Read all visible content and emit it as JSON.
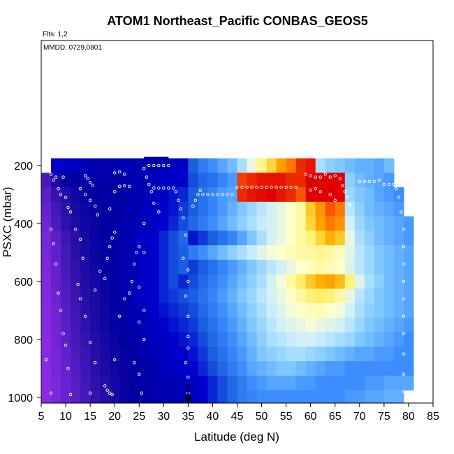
{
  "chart_data": {
    "type": "heatmap",
    "title": "ATOM1 Northeast_Pacific CONBAS_GEOS5",
    "flights_label": "Flts: 1,2",
    "dates_label": "MMDD: 0729,0801",
    "xlabel": "Latitude (deg N)",
    "ylabel": "PSXC (mbar)",
    "xlim": [
      5,
      85
    ],
    "ylim": [
      1000,
      0
    ],
    "y_reversed": true,
    "grid": false,
    "legend": "none",
    "x_ticks": [
      5,
      10,
      15,
      20,
      25,
      30,
      35,
      40,
      45,
      50,
      55,
      60,
      65,
      70,
      75,
      80,
      85
    ],
    "y_ticks": [
      200,
      400,
      600,
      800,
      1000
    ],
    "marker_latitude": 35,
    "color_scale": [
      "#8a2be2",
      "#5b1fc8",
      "#2a10a8",
      "#0000a0",
      "#0000cd",
      "#1a5fe0",
      "#3c8dff",
      "#7ec8ff",
      "#c8ecff",
      "#ffffcc",
      "#ffee66",
      "#ffb000",
      "#ff6a00",
      "#e00000"
    ],
    "latitude_bins": [
      6,
      8,
      10,
      12,
      14,
      16,
      18,
      20,
      22,
      24,
      26,
      28,
      30,
      32,
      34,
      36,
      38,
      40,
      42,
      44,
      46,
      48,
      50,
      52,
      54,
      56,
      58,
      60,
      62,
      64,
      66,
      68,
      70,
      72,
      74,
      76,
      78,
      80
    ],
    "pressure_bins": [
      200,
      250,
      300,
      350,
      400,
      450,
      500,
      550,
      600,
      650,
      700,
      750,
      800,
      850,
      900,
      950,
      1000
    ],
    "values": [
      [
        null,
        4.0,
        3.8,
        3.6,
        3.5,
        3.4,
        3.3,
        3.3,
        3.4,
        3.3,
        3.5,
        3.5,
        3.6,
        3.7,
        3.8,
        5.0,
        5.6,
        6.0,
        6.4,
        6.8,
        7.6,
        8.6,
        9.6,
        10.4,
        11.2,
        11.8,
        12.6,
        12.8,
        7.6,
        7.2,
        7.0,
        6.8,
        6.6,
        6.6,
        6.4,
        6.8,
        null,
        null
      ],
      [
        1.4,
        2.4,
        2.8,
        3.0,
        3.2,
        3.2,
        3.2,
        3.1,
        3.2,
        3.3,
        3.4,
        3.6,
        3.7,
        3.8,
        4.0,
        4.8,
        5.2,
        5.4,
        5.8,
        6.2,
        12.4,
        12.6,
        12.8,
        12.8,
        12.8,
        12.6,
        12.6,
        13.0,
        13.2,
        13.6,
        13.0,
        7.2,
        6.8,
        6.6,
        6.4,
        6.2,
        null,
        null
      ],
      [
        1.0,
        1.8,
        2.2,
        2.6,
        2.9,
        3.0,
        3.1,
        3.1,
        3.2,
        3.3,
        3.4,
        3.6,
        3.8,
        4.2,
        4.4,
        5.0,
        5.4,
        5.8,
        6.2,
        6.4,
        12.6,
        12.8,
        12.9,
        13.0,
        12.8,
        12.6,
        12.2,
        13.0,
        13.4,
        13.6,
        13.2,
        7.4,
        7.0,
        6.8,
        6.4,
        6.2,
        6.0,
        null
      ],
      [
        0.8,
        1.5,
        2.0,
        2.4,
        2.7,
        2.9,
        3.0,
        3.1,
        3.2,
        3.4,
        3.6,
        3.8,
        4.0,
        4.2,
        4.6,
        5.0,
        5.4,
        5.8,
        6.2,
        6.6,
        7.0,
        7.4,
        7.8,
        8.2,
        8.6,
        9.0,
        9.4,
        10.6,
        11.4,
        12.2,
        11.8,
        7.8,
        7.2,
        6.8,
        6.6,
        6.4,
        6.2,
        null
      ],
      [
        0.6,
        1.3,
        1.9,
        2.3,
        2.6,
        2.8,
        3.0,
        3.1,
        3.2,
        3.4,
        3.6,
        3.8,
        4.0,
        4.4,
        4.8,
        5.2,
        5.6,
        6.0,
        6.4,
        6.8,
        7.2,
        7.6,
        8.0,
        8.2,
        8.6,
        9.0,
        9.4,
        10.4,
        11.2,
        11.8,
        11.4,
        8.2,
        7.4,
        7.0,
        6.8,
        6.6,
        6.4,
        6.2
      ],
      [
        0.4,
        1.0,
        1.6,
        2.1,
        2.5,
        2.8,
        3.0,
        3.1,
        3.3,
        3.6,
        3.8,
        4.0,
        4.4,
        4.8,
        5.2,
        4.2,
        4.6,
        5.0,
        5.4,
        5.8,
        6.4,
        7.0,
        7.6,
        8.2,
        8.6,
        9.0,
        9.4,
        9.8,
        10.4,
        11.0,
        10.6,
        8.6,
        7.6,
        7.2,
        6.8,
        6.6,
        6.4,
        6.2
      ],
      [
        0.4,
        0.9,
        1.5,
        2.0,
        2.4,
        2.7,
        2.9,
        3.1,
        3.3,
        3.5,
        3.7,
        4.0,
        4.4,
        4.8,
        5.0,
        5.6,
        6.0,
        6.4,
        6.8,
        7.2,
        7.6,
        8.0,
        8.4,
        8.8,
        9.0,
        9.2,
        9.4,
        9.4,
        9.6,
        9.4,
        9.2,
        8.4,
        7.8,
        7.4,
        7.0,
        6.8,
        6.6,
        6.4
      ],
      [
        0.3,
        0.8,
        1.4,
        1.9,
        2.3,
        2.6,
        2.9,
        3.1,
        3.3,
        3.5,
        3.8,
        4.0,
        4.4,
        4.8,
        5.0,
        4.6,
        5.0,
        5.4,
        5.8,
        6.2,
        6.6,
        7.0,
        7.4,
        7.8,
        8.2,
        8.6,
        9.0,
        9.2,
        9.4,
        9.2,
        9.0,
        8.4,
        7.8,
        7.4,
        7.0,
        6.8,
        6.6,
        6.4
      ],
      [
        0.2,
        0.8,
        1.3,
        1.8,
        2.2,
        2.5,
        2.8,
        3.0,
        3.3,
        3.5,
        3.8,
        4.0,
        4.4,
        4.8,
        4.4,
        4.8,
        5.2,
        5.6,
        6.0,
        6.4,
        6.8,
        7.2,
        7.6,
        8.2,
        8.8,
        9.4,
        10.0,
        10.6,
        11.0,
        11.2,
        10.8,
        9.8,
        8.4,
        7.6,
        7.2,
        6.8,
        6.6,
        6.4
      ],
      [
        0.2,
        0.7,
        1.2,
        1.7,
        2.1,
        2.4,
        2.7,
        3.0,
        3.2,
        3.5,
        3.8,
        4.0,
        4.4,
        4.6,
        4.8,
        5.0,
        5.4,
        5.8,
        6.2,
        6.6,
        7.0,
        7.4,
        7.8,
        8.2,
        8.6,
        9.0,
        9.4,
        9.8,
        10.0,
        9.8,
        9.4,
        8.6,
        7.8,
        7.4,
        7.0,
        6.8,
        6.6,
        6.4
      ],
      [
        0.1,
        0.6,
        1.1,
        1.6,
        2.0,
        2.3,
        2.6,
        2.9,
        3.1,
        3.4,
        3.6,
        3.9,
        4.2,
        4.4,
        4.6,
        4.8,
        5.2,
        5.6,
        6.0,
        6.4,
        6.8,
        7.2,
        7.6,
        8.0,
        8.4,
        8.8,
        9.0,
        9.2,
        9.2,
        9.0,
        8.8,
        8.2,
        7.6,
        7.2,
        7.0,
        6.8,
        6.6,
        6.4
      ],
      [
        0.1,
        0.5,
        1.0,
        1.5,
        1.9,
        2.3,
        2.6,
        2.9,
        3.1,
        3.3,
        3.6,
        3.8,
        4.0,
        4.2,
        4.4,
        4.6,
        5.0,
        5.4,
        5.8,
        6.2,
        6.6,
        7.0,
        7.4,
        7.8,
        8.2,
        8.4,
        8.6,
        8.8,
        8.6,
        8.4,
        8.2,
        7.8,
        7.4,
        7.0,
        6.8,
        6.6,
        6.4,
        6.2
      ],
      [
        0.0,
        0.5,
        1.0,
        1.4,
        1.8,
        2.2,
        2.5,
        2.8,
        3.0,
        3.2,
        3.4,
        3.6,
        3.8,
        4.0,
        4.2,
        4.4,
        4.8,
        5.2,
        5.6,
        6.0,
        6.4,
        6.8,
        7.2,
        7.6,
        7.8,
        8.0,
        8.2,
        8.2,
        8.0,
        7.8,
        7.6,
        7.4,
        7.0,
        6.8,
        6.6,
        6.4,
        6.2,
        6.0
      ],
      [
        0.0,
        0.4,
        0.9,
        1.3,
        1.7,
        2.1,
        2.4,
        2.7,
        2.9,
        3.1,
        3.3,
        3.5,
        3.7,
        3.9,
        4.0,
        4.2,
        4.6,
        5.0,
        5.4,
        5.8,
        6.2,
        6.6,
        7.0,
        7.2,
        7.4,
        7.6,
        7.6,
        7.4,
        7.2,
        7.0,
        6.8,
        6.6,
        6.4,
        6.4,
        6.2,
        6.2,
        6.0,
        6.0
      ],
      [
        0.0,
        0.4,
        0.8,
        1.2,
        1.6,
        2.0,
        2.3,
        2.6,
        2.8,
        3.0,
        3.2,
        3.4,
        3.6,
        3.8,
        3.9,
        4.0,
        4.4,
        4.8,
        5.2,
        5.6,
        6.0,
        6.4,
        6.6,
        6.8,
        7.0,
        7.0,
        6.8,
        6.6,
        6.4,
        6.2,
        6.2,
        6.0,
        6.0,
        6.0,
        6.0,
        6.0,
        6.0,
        6.0
      ],
      [
        0.0,
        0.3,
        0.7,
        1.1,
        1.5,
        1.9,
        2.2,
        2.5,
        2.8,
        3.0,
        3.2,
        3.3,
        3.4,
        3.5,
        3.6,
        3.7,
        4.0,
        4.4,
        4.8,
        5.2,
        5.6,
        6.0,
        6.2,
        6.4,
        6.4,
        6.4,
        6.2,
        6.2,
        6.0,
        6.0,
        6.0,
        6.0,
        6.0,
        6.2,
        6.2,
        6.4,
        6.4,
        6.4
      ],
      [
        0.0,
        0.3,
        0.7,
        1.0,
        1.4,
        1.8,
        2.2,
        2.5,
        2.8,
        3.0,
        3.1,
        3.2,
        3.3,
        3.4,
        3.5,
        3.6,
        4.0,
        4.4,
        4.8,
        5.2,
        5.6,
        5.8,
        6.0,
        6.0,
        6.0,
        6.0,
        6.0,
        6.0,
        6.0,
        6.0,
        6.0,
        6.2,
        6.2,
        6.4,
        6.4,
        6.6,
        6.6,
        null
      ]
    ],
    "top_box": {
      "lat_range": [
        26,
        31
      ],
      "pressure_range": [
        170,
        200
      ]
    },
    "sample_points": [
      [
        7,
        230
      ],
      [
        7.5,
        250
      ],
      [
        8,
        240
      ],
      [
        8.5,
        280
      ],
      [
        9,
        300
      ],
      [
        9.5,
        240
      ],
      [
        10,
        310
      ],
      [
        10.5,
        345
      ],
      [
        11,
        360
      ],
      [
        7,
        420
      ],
      [
        7.5,
        470
      ],
      [
        8,
        540
      ],
      [
        8.5,
        640
      ],
      [
        9,
        700
      ],
      [
        9.5,
        780
      ],
      [
        10,
        820
      ],
      [
        10.5,
        900
      ],
      [
        11,
        990
      ],
      [
        7,
        985
      ],
      [
        6,
        870
      ],
      [
        12,
        420
      ],
      [
        13,
        455
      ],
      [
        13.5,
        520
      ],
      [
        14,
        235
      ],
      [
        14.5,
        245
      ],
      [
        15,
        258
      ],
      [
        15.5,
        268
      ],
      [
        13,
        280
      ],
      [
        14,
        300
      ],
      [
        15,
        320
      ],
      [
        16,
        340
      ],
      [
        16.5,
        370
      ],
      [
        12.5,
        610
      ],
      [
        13,
        660
      ],
      [
        14,
        720
      ],
      [
        15,
        810
      ],
      [
        16,
        880
      ],
      [
        15,
        985
      ],
      [
        16,
        630
      ],
      [
        17,
        565
      ],
      [
        18,
        590
      ],
      [
        18.5,
        520
      ],
      [
        19,
        480
      ],
      [
        19.5,
        450
      ],
      [
        20,
        430
      ],
      [
        19,
        350
      ],
      [
        20,
        290
      ],
      [
        21,
        272
      ],
      [
        22,
        270
      ],
      [
        23,
        272
      ],
      [
        20,
        225
      ],
      [
        21,
        222
      ],
      [
        22,
        230
      ],
      [
        18,
        960
      ],
      [
        18.5,
        975
      ],
      [
        19,
        985
      ],
      [
        19.5,
        990
      ],
      [
        20,
        870
      ],
      [
        21,
        720
      ],
      [
        22,
        660
      ],
      [
        23,
        640
      ],
      [
        23.5,
        600
      ],
      [
        24,
        540
      ],
      [
        24.5,
        500
      ],
      [
        25,
        480
      ],
      [
        24,
        880
      ],
      [
        25,
        920
      ],
      [
        25.5,
        985
      ],
      [
        26,
        210
      ],
      [
        26.5,
        240
      ],
      [
        27,
        265
      ],
      [
        27.5,
        290
      ],
      [
        28,
        330
      ],
      [
        29,
        360
      ],
      [
        26,
        400
      ],
      [
        26,
        500
      ],
      [
        26,
        700
      ],
      [
        26,
        800
      ],
      [
        25,
        620
      ],
      [
        25,
        740
      ],
      [
        28,
        278
      ],
      [
        29,
        278
      ],
      [
        30,
        278
      ],
      [
        31,
        278
      ],
      [
        32,
        278
      ],
      [
        32.5,
        290
      ],
      [
        33,
        320
      ],
      [
        33.5,
        350
      ],
      [
        34,
        380
      ],
      [
        34.5,
        440
      ],
      [
        34,
        520
      ],
      [
        35,
        560
      ],
      [
        35,
        600
      ],
      [
        34.5,
        650
      ],
      [
        35,
        720
      ],
      [
        35,
        790
      ],
      [
        35,
        830
      ],
      [
        34.5,
        880
      ],
      [
        35,
        930
      ],
      [
        35,
        985
      ],
      [
        27,
        200
      ],
      [
        28,
        200
      ],
      [
        29,
        200
      ],
      [
        30,
        200
      ],
      [
        31,
        200
      ],
      [
        36,
        340
      ],
      [
        36.5,
        320
      ],
      [
        37,
        300
      ],
      [
        37.5,
        286
      ],
      [
        38,
        300
      ],
      [
        39,
        300
      ],
      [
        40,
        300
      ],
      [
        41,
        300
      ],
      [
        42,
        300
      ],
      [
        43,
        300
      ],
      [
        44,
        300
      ],
      [
        45,
        275
      ],
      [
        46,
        275
      ],
      [
        47,
        275
      ],
      [
        48,
        275
      ],
      [
        49,
        275
      ],
      [
        50,
        275
      ],
      [
        51,
        275
      ],
      [
        52,
        275
      ],
      [
        53,
        275
      ],
      [
        54,
        275
      ],
      [
        55,
        275
      ],
      [
        56,
        275
      ],
      [
        57,
        275
      ],
      [
        59,
        230
      ],
      [
        60,
        235
      ],
      [
        61,
        240
      ],
      [
        62,
        240
      ],
      [
        63,
        230
      ],
      [
        64,
        240
      ],
      [
        65,
        235
      ],
      [
        66,
        245
      ],
      [
        66.5,
        270
      ],
      [
        67,
        290
      ],
      [
        67.5,
        310
      ],
      [
        68,
        335
      ],
      [
        65,
        320
      ],
      [
        64,
        300
      ],
      [
        62,
        290
      ],
      [
        61,
        280
      ],
      [
        60,
        285
      ],
      [
        70,
        255
      ],
      [
        71,
        255
      ],
      [
        72,
        255
      ],
      [
        73,
        255
      ],
      [
        74,
        250
      ],
      [
        75,
        265
      ],
      [
        76,
        265
      ],
      [
        77,
        265
      ],
      [
        77.5,
        280
      ],
      [
        78,
        310
      ],
      [
        78.5,
        360
      ],
      [
        79,
        420
      ],
      [
        79,
        480
      ],
      [
        79,
        540
      ],
      [
        79,
        600
      ],
      [
        79,
        660
      ],
      [
        79,
        720
      ],
      [
        79,
        780
      ],
      [
        79,
        850
      ],
      [
        79,
        920
      ],
      [
        79,
        980
      ]
    ]
  }
}
